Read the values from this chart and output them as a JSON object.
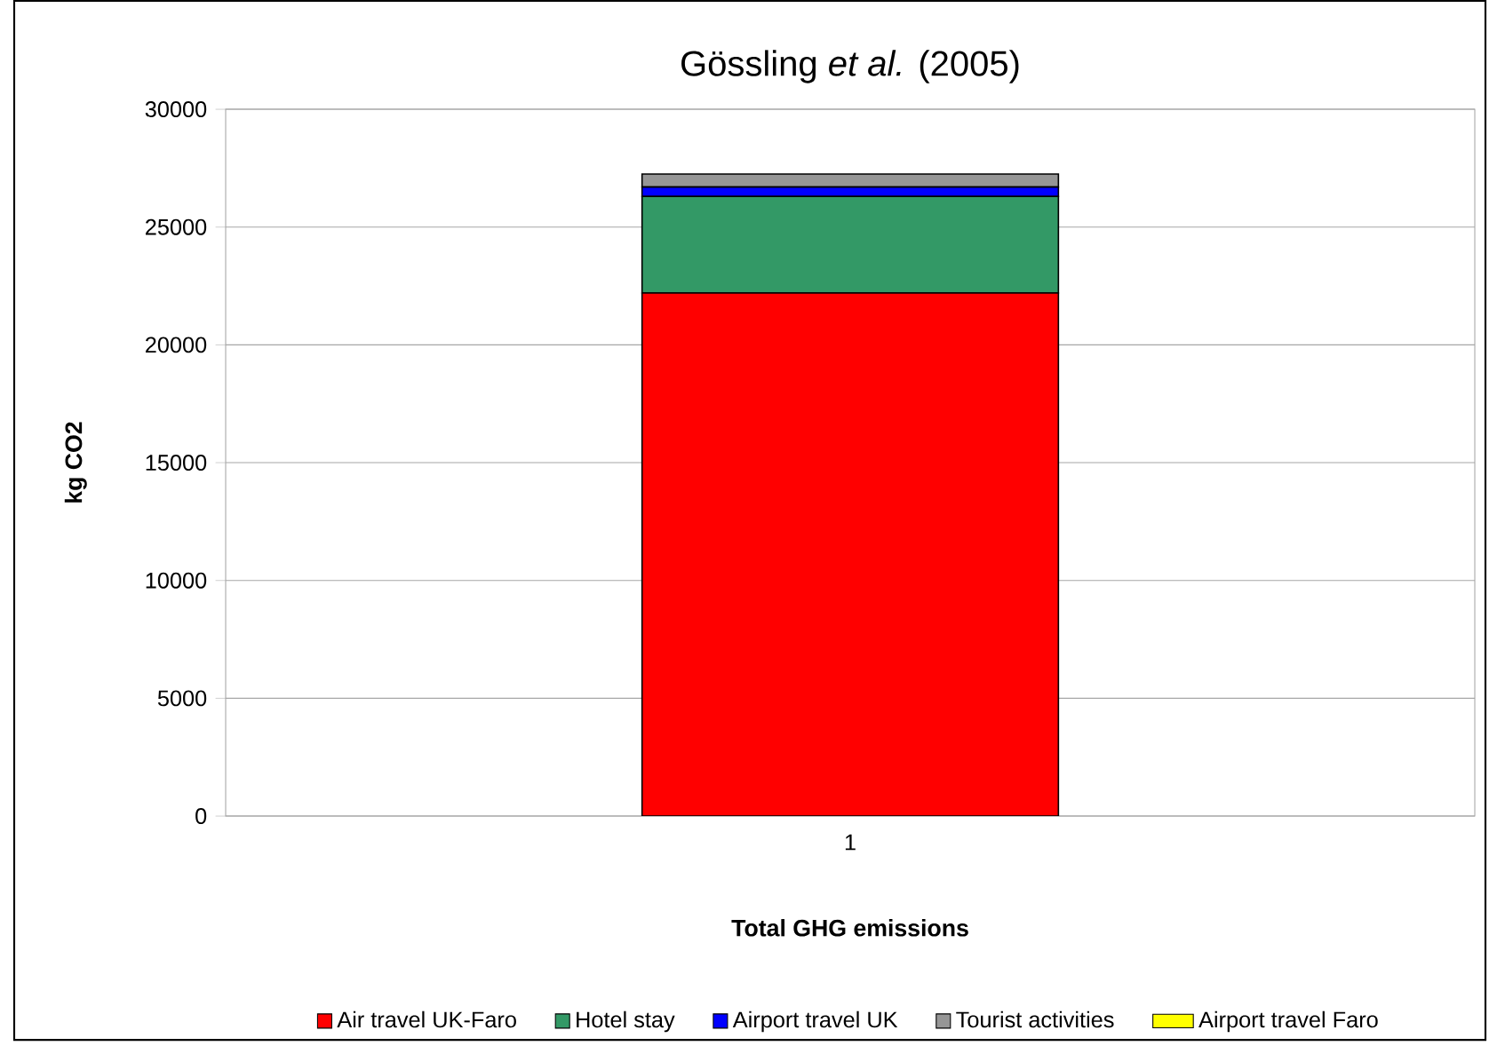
{
  "chart_data": {
    "type": "bar",
    "stacked": true,
    "title": "Gössling *et al.* (2005)",
    "xlabel": "Total GHG emissions",
    "ylabel": "kg CO2",
    "categories": [
      "1"
    ],
    "series": [
      {
        "name": "Air travel UK-Faro",
        "color": "#ff0000",
        "values": [
          22200
        ]
      },
      {
        "name": "Hotel stay",
        "color": "#339966",
        "values": [
          4100
        ]
      },
      {
        "name": "Airport travel UK",
        "color": "#0000ff",
        "values": [
          400
        ]
      },
      {
        "name": "Tourist activities",
        "color": "#969696",
        "values": [
          550
        ]
      },
      {
        "name": "Airport travel Faro",
        "color": "#ffff00",
        "values": [
          null
        ]
      }
    ],
    "ylim": [
      0,
      30000
    ],
    "yticks": [
      0,
      5000,
      10000,
      15000,
      20000,
      25000,
      30000
    ],
    "grid": "y",
    "legend": "bottom"
  }
}
